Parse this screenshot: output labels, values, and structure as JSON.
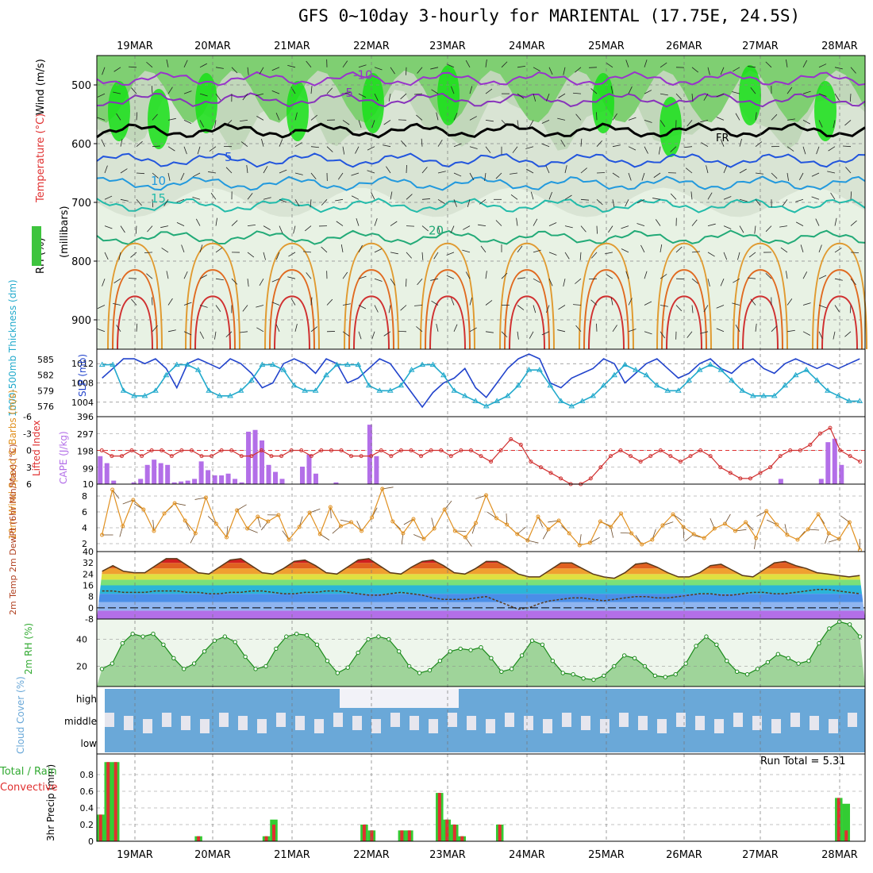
{
  "title": "GFS 0~10day 3-hourly for MARIENTAL (17.75E, 24.5S)",
  "run_total_label": "Run Total = 5.31",
  "dates": [
    "19MAR",
    "20MAR",
    "21MAR",
    "22MAR",
    "23MAR",
    "24MAR",
    "25MAR",
    "26MAR",
    "27MAR",
    "28MAR"
  ],
  "colors": {
    "green": "#33aa33",
    "red": "#e03030",
    "blue": "#2244cc",
    "cyan": "#22aacc",
    "purple": "#b36fe8",
    "orange": "#e09020",
    "brown": "#5a3a1a",
    "cloud": "#6aa8d8"
  },
  "chart_data": [
    {
      "type": "contour",
      "panel": "upper-air",
      "ylabel_parts": [
        "Wind (m/s)",
        "Temperature (°C)",
        "RH (%)",
        "(millibars)"
      ],
      "yticks": [
        500,
        600,
        700,
        800,
        900
      ],
      "ylim": [
        450,
        950
      ],
      "freezing_label": "FR",
      "isotherm_labels": [
        {
          "label": "-10",
          "p": 490
        },
        {
          "label": "-5",
          "p": 520
        },
        {
          "label": "5",
          "p": 630
        },
        {
          "label": "10",
          "p": 670
        },
        {
          "label": "15",
          "p": 700
        },
        {
          "label": "20",
          "p": 755
        }
      ],
      "isotherms": [
        {
          "temp": -10,
          "base_p": 490,
          "color": "#9933cc"
        },
        {
          "temp": -5,
          "base_p": 525,
          "color": "#8833bb"
        },
        {
          "temp": 0,
          "base_p": 578,
          "color": "#000000"
        },
        {
          "temp": 5,
          "base_p": 628,
          "color": "#2255dd"
        },
        {
          "temp": 10,
          "base_p": 668,
          "color": "#2299dd"
        },
        {
          "temp": 15,
          "base_p": 705,
          "color": "#22bbaa"
        },
        {
          "temp": 20,
          "base_p": 760,
          "color": "#22aa77"
        }
      ]
    },
    {
      "type": "line",
      "panel": "thickness-slp",
      "ylabel_left": "1000-500mb Thickness (dm)",
      "ylabel_right": "SLP (mb)",
      "thickness_ticks": [
        576,
        579,
        582,
        585
      ],
      "slp_ticks": [
        1004,
        1008,
        1012
      ],
      "series": [
        {
          "name": "SLP (mb)",
          "color": "#2244cc",
          "values": [
            1009,
            1011,
            1013,
            1013,
            1012,
            1013,
            1011,
            1007,
            1012,
            1013,
            1012,
            1011,
            1013,
            1012,
            1010,
            1007,
            1008,
            1012,
            1013,
            1012,
            1010,
            1013,
            1012,
            1008,
            1009,
            1011,
            1013,
            1012,
            1009,
            1006,
            1003,
            1006,
            1008,
            1009,
            1011,
            1007,
            1005,
            1008,
            1011,
            1013,
            1014,
            1013,
            1008,
            1007,
            1009,
            1010,
            1011,
            1013,
            1012,
            1008,
            1010,
            1012,
            1013,
            1011,
            1009,
            1010,
            1012,
            1013,
            1011,
            1010,
            1012,
            1013,
            1011,
            1010,
            1012,
            1013,
            1012,
            1011,
            1012,
            1011,
            1012,
            1013
          ]
        },
        {
          "name": "1000-500mb Thickness (dm)",
          "color": "#22aacc",
          "values": [
            584,
            584,
            579,
            578,
            578,
            579,
            582,
            584,
            584,
            583,
            579,
            578,
            578,
            579,
            581,
            584,
            584,
            583,
            580,
            579,
            579,
            582,
            584,
            584,
            584,
            580,
            579,
            579,
            580,
            583,
            584,
            584,
            582,
            579,
            578,
            577,
            576,
            577,
            578,
            580,
            583,
            583,
            580,
            577,
            576,
            577,
            578,
            580,
            582,
            584,
            583,
            582,
            580,
            579,
            579,
            581,
            583,
            584,
            583,
            581,
            579,
            578,
            578,
            578,
            580,
            582,
            583,
            581,
            579,
            578,
            577,
            577
          ]
        }
      ]
    },
    {
      "type": "bar",
      "panel": "cape-li",
      "ylabel_left": "Lifted Index",
      "ylabel_right": "CAPE (J/kg)",
      "cape_ticks": [
        10,
        99,
        198,
        297,
        396
      ],
      "li_ticks": [
        6,
        3,
        0,
        -3,
        -6
      ],
      "cape": [
        170,
        130,
        30,
        0,
        10,
        20,
        40,
        120,
        150,
        130,
        120,
        20,
        25,
        30,
        40,
        140,
        90,
        60,
        60,
        70,
        40,
        20,
        310,
        320,
        260,
        120,
        80,
        40,
        0,
        0,
        110,
        180,
        70,
        10,
        10,
        20,
        0,
        0,
        0,
        0,
        350,
        170,
        0,
        0,
        0,
        0,
        0,
        0,
        0,
        0,
        0,
        0,
        0,
        0,
        0,
        0,
        0,
        0,
        0,
        0,
        0,
        0,
        0,
        0,
        0,
        0,
        0,
        0,
        0,
        0,
        0,
        0,
        0,
        0,
        0,
        0,
        0,
        0,
        0,
        0,
        0,
        0,
        0,
        0,
        0,
        0,
        0,
        0,
        0,
        0,
        0,
        0,
        0,
        0,
        10,
        10,
        0,
        0,
        0,
        0,
        0,
        40,
        0,
        0,
        0,
        0,
        0,
        40,
        250,
        270,
        120,
        10,
        0,
        0
      ],
      "lifted_index": [
        0,
        1,
        1,
        0,
        1,
        0,
        0,
        1,
        0,
        0,
        1,
        1,
        0,
        0,
        1,
        1,
        0,
        1,
        1,
        0,
        0,
        1,
        0,
        0,
        0,
        1,
        1,
        1,
        0,
        1,
        0,
        0,
        1,
        0,
        0,
        1,
        0,
        0,
        1,
        2,
        0,
        -2,
        -1,
        2,
        3,
        4,
        5,
        6,
        6,
        5,
        3,
        1,
        0,
        1,
        2,
        1,
        0,
        1,
        2,
        1,
        0,
        1,
        3,
        4,
        5,
        5,
        4,
        3,
        1,
        0,
        0,
        -1,
        -3,
        -4,
        0,
        1,
        2
      ]
    },
    {
      "type": "line",
      "panel": "wind10m",
      "ylabel": "10m Wind Speed & Barbs (m/s)",
      "yticks": [
        2,
        4,
        6,
        8
      ],
      "ylim": [
        1,
        9.5
      ],
      "values": [
        3.1,
        8.8,
        4.2,
        7.5,
        6.3,
        3.6,
        5.8,
        7.1,
        4.9,
        3.3,
        7.8,
        4.5,
        2.8,
        6.2,
        3.9,
        5.4,
        4.8,
        5.6,
        2.5,
        4.1,
        5.9,
        3.2,
        6.6,
        4.2,
        4.7,
        3.6,
        5.3,
        8.9,
        4.8,
        3.3,
        5.1,
        2.6,
        3.9,
        6.3,
        3.6,
        2.8,
        4.6,
        8.1,
        5.2,
        4.4,
        3.2,
        2.4,
        5.4,
        3.8,
        4.9,
        3.3,
        1.8,
        2.1,
        4.8,
        4.1,
        5.8,
        3.3,
        1.9,
        2.5,
        4.3,
        5.7,
        4.1,
        3.2,
        2.7,
        3.9,
        4.5,
        3.6,
        4.7,
        2.7,
        6.1,
        4.4,
        3.1,
        2.5,
        3.8,
        5.7,
        3.3,
        2.6,
        4.7,
        1.2
      ]
    },
    {
      "type": "area",
      "panel": "temperature",
      "ylabel": "2m Temp 2m DewPt (6hr Min/Max) (°C)",
      "yticks": [
        -8,
        0,
        8,
        16,
        24,
        32,
        40
      ],
      "ylim": [
        -8,
        40
      ],
      "temp": [
        26,
        30,
        26,
        25,
        25,
        30,
        35,
        35,
        30,
        25,
        24,
        29,
        34,
        35,
        30,
        25,
        24,
        28,
        33,
        34,
        30,
        25,
        24,
        29,
        34,
        35,
        30,
        25,
        24,
        29,
        33,
        34,
        30,
        25,
        24,
        28,
        33,
        33,
        29,
        24,
        22,
        22,
        27,
        32,
        32,
        28,
        24,
        22,
        21,
        25,
        31,
        32,
        29,
        25,
        22,
        22,
        25,
        30,
        31,
        27,
        23,
        22,
        27,
        32,
        33,
        30,
        28,
        25,
        24,
        23,
        22,
        23
      ],
      "dewpt": [
        12,
        12,
        11,
        11,
        11,
        12,
        12,
        12,
        11,
        11,
        10,
        10,
        11,
        11,
        12,
        12,
        11,
        10,
        10,
        11,
        11,
        12,
        12,
        11,
        10,
        9,
        9,
        10,
        11,
        10,
        9,
        7,
        6,
        6,
        6,
        7,
        8,
        5,
        2,
        -1,
        0,
        3,
        5,
        6,
        7,
        7,
        6,
        5,
        6,
        7,
        8,
        8,
        7,
        7,
        8,
        9,
        10,
        10,
        9,
        9,
        10,
        11,
        11,
        10,
        10,
        11,
        12,
        13,
        13,
        12,
        11,
        10
      ]
    },
    {
      "type": "area",
      "panel": "rh",
      "ylabel": "2m RH (%)",
      "yticks": [
        20,
        40
      ],
      "ylim": [
        5,
        55
      ],
      "values": [
        18,
        22,
        37,
        44,
        42,
        44,
        36,
        26,
        18,
        22,
        31,
        39,
        42,
        38,
        27,
        18,
        20,
        33,
        42,
        44,
        43,
        36,
        24,
        15,
        19,
        30,
        40,
        42,
        40,
        31,
        20,
        15,
        17,
        24,
        31,
        33,
        32,
        34,
        26,
        16,
        18,
        28,
        39,
        36,
        24,
        15,
        14,
        11,
        10,
        13,
        20,
        28,
        26,
        20,
        13,
        12,
        14,
        22,
        35,
        42,
        36,
        24,
        16,
        14,
        18,
        23,
        29,
        26,
        22,
        24,
        37,
        48,
        53,
        51,
        42
      ]
    },
    {
      "type": "heatmap",
      "panel": "clouds",
      "ylabel": "Cloud Cover (%)",
      "ytick_labels": [
        "high",
        "middle",
        "low"
      ]
    },
    {
      "type": "bar",
      "panel": "precip",
      "ylabel": "3hr Precip (mm)",
      "ylabel_left": "Total / Rain",
      "ylabel_left2": "Convective",
      "yticks": [
        0,
        0.2,
        0.4,
        0.6,
        0.8
      ],
      "ylim": [
        0,
        1.0
      ],
      "total": [
        0.32,
        0.95,
        0.95,
        0,
        0,
        0,
        0,
        0,
        0,
        0,
        0,
        0,
        0,
        0.06,
        0,
        0,
        0,
        0,
        0,
        0,
        0,
        0,
        0.06,
        0.26,
        0,
        0,
        0,
        0,
        0,
        0,
        0,
        0,
        0,
        0,
        0,
        0.2,
        0.13,
        0,
        0,
        0,
        0.13,
        0.13,
        0,
        0,
        0,
        0.58,
        0.26,
        0.2,
        0.06,
        0,
        0,
        0,
        0,
        0.2,
        0,
        0,
        0,
        0,
        0,
        0,
        0,
        0,
        0,
        0,
        0,
        0,
        0,
        0,
        0,
        0,
        0,
        0,
        0,
        0,
        0,
        0,
        0,
        0,
        0,
        0,
        0,
        0,
        0,
        0,
        0,
        0,
        0,
        0,
        0,
        0,
        0,
        0,
        0,
        0,
        0,
        0,
        0,
        0,
        0.52,
        0.45,
        0,
        0
      ],
      "convective": [
        0.32,
        0.95,
        0.95,
        0,
        0,
        0,
        0,
        0,
        0,
        0,
        0,
        0,
        0,
        0.06,
        0,
        0,
        0,
        0,
        0,
        0,
        0,
        0,
        0.06,
        0.2,
        0,
        0,
        0,
        0,
        0,
        0,
        0,
        0,
        0,
        0,
        0,
        0.2,
        0.13,
        0,
        0,
        0,
        0.13,
        0.13,
        0,
        0,
        0,
        0.58,
        0.26,
        0.2,
        0.06,
        0,
        0,
        0,
        0,
        0.2,
        0,
        0,
        0,
        0,
        0,
        0,
        0,
        0,
        0,
        0,
        0,
        0,
        0,
        0,
        0,
        0,
        0,
        0,
        0,
        0,
        0,
        0,
        0,
        0,
        0,
        0,
        0,
        0,
        0,
        0,
        0,
        0,
        0,
        0,
        0,
        0,
        0,
        0,
        0,
        0,
        0,
        0,
        0,
        0,
        0.52,
        0.13,
        0,
        0
      ]
    }
  ]
}
